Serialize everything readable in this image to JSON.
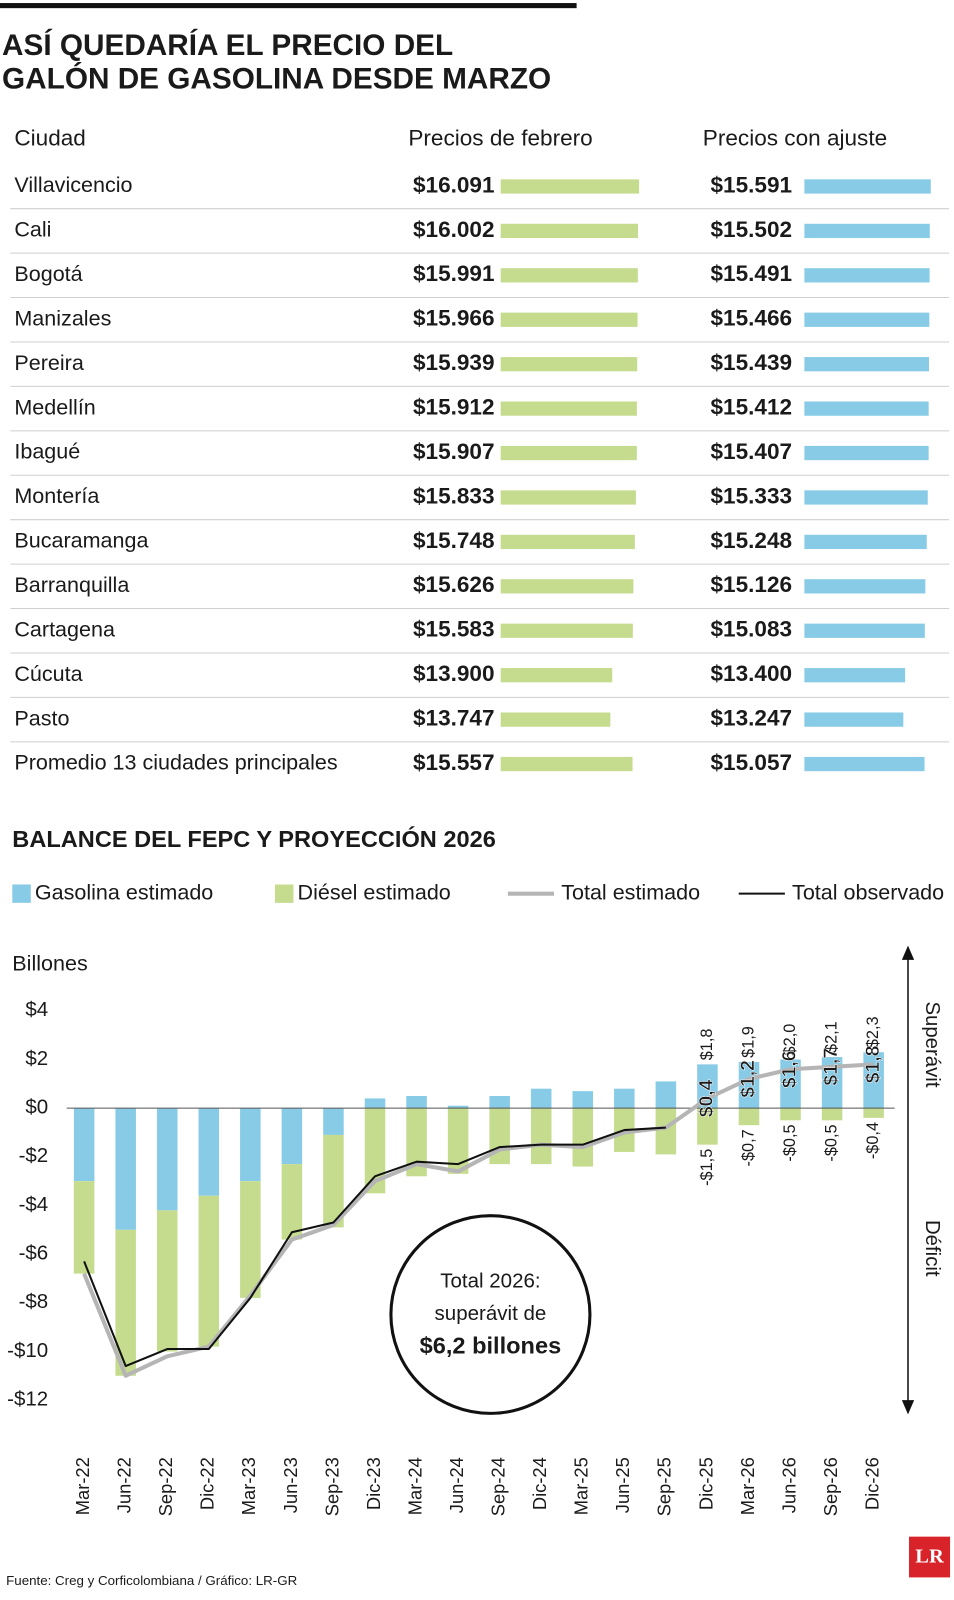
{
  "chart_data": [
    {
      "type": "bar",
      "orientation": "horizontal",
      "title": [
        "ASÍ QUEDARÍA EL PRECIO DEL",
        "GALÓN DE GASOLINA DESDE MARZO"
      ],
      "category_label": "Ciudad",
      "categories": [
        "Villavicencio",
        "Cali",
        "Bogotá",
        "Manizales",
        "Pereira",
        "Medellín",
        "Ibagué",
        "Montería",
        "Bucaramanga",
        "Barranquilla",
        "Cartagena",
        "Cúcuta",
        "Pasto",
        "Promedio 13 ciudades principales"
      ],
      "series": [
        {
          "name": "Precios de febrero",
          "color": "#c5dc8e",
          "values": [
            16091,
            16002,
            15991,
            15966,
            15939,
            15912,
            15907,
            15833,
            15748,
            15626,
            15583,
            13900,
            13747,
            15557
          ],
          "value_labels": [
            "$16.091",
            "$16.002",
            "$15.991",
            "$15.966",
            "$15.939",
            "$15.912",
            "$15.907",
            "$15.833",
            "$15.748",
            "$15.626",
            "$15.583",
            "$13.900",
            "$13.747",
            "$15.557"
          ]
        },
        {
          "name": "Precios con ajuste",
          "color": "#87cbe6",
          "values": [
            15591,
            15502,
            15491,
            15466,
            15439,
            15412,
            15407,
            15333,
            15248,
            15126,
            15083,
            13400,
            13247,
            15057
          ],
          "value_labels": [
            "$15.591",
            "$15.502",
            "$15.491",
            "$15.466",
            "$15.439",
            "$15.412",
            "$15.407",
            "$15.333",
            "$15.248",
            "$15.126",
            "$15.083",
            "$13.400",
            "$13.247",
            "$15.057"
          ]
        }
      ],
      "xlim": [
        4800,
        16100
      ]
    },
    {
      "type": "bar",
      "stacked": true,
      "title": "BALANCE DEL FEPC Y PROYECCIÓN 2026",
      "ylabel": "Billones",
      "categories": [
        "Mar-22",
        "Jun-22",
        "Sep-22",
        "Dic-22",
        "Mar-23",
        "Jun-23",
        "Sep-23",
        "Dic-23",
        "Mar-24",
        "Jun-24",
        "Sep-24",
        "Dic-24",
        "Mar-25",
        "Jun-25",
        "Sep-25",
        "Dic-25",
        "Mar-26",
        "Jun-26",
        "Sep-26",
        "Dic-26"
      ],
      "series": [
        {
          "name": "Gasolina estimado",
          "type": "bar",
          "color": "#87cbe6",
          "values": [
            -3.0,
            -5.0,
            -4.2,
            -3.6,
            -3.0,
            -2.3,
            -1.1,
            0.4,
            0.5,
            0.1,
            0.5,
            0.8,
            0.7,
            0.8,
            1.1,
            1.8,
            1.9,
            2.0,
            2.1,
            2.3
          ],
          "value_labels": [
            null,
            null,
            null,
            null,
            null,
            null,
            null,
            null,
            null,
            null,
            null,
            null,
            null,
            null,
            null,
            "$1,8",
            "$1,9",
            "$2,0",
            "$2,1",
            "$2,3"
          ]
        },
        {
          "name": "Diésel estimado",
          "type": "bar",
          "color": "#c5dc8e",
          "values": [
            -3.8,
            -6.0,
            -5.8,
            -6.2,
            -4.8,
            -3.1,
            -3.8,
            -3.5,
            -2.8,
            -2.7,
            -2.3,
            -2.3,
            -2.4,
            -1.8,
            -1.9,
            -1.5,
            -0.7,
            -0.5,
            -0.5,
            -0.4
          ],
          "value_labels": [
            null,
            null,
            null,
            null,
            null,
            null,
            null,
            null,
            null,
            null,
            null,
            null,
            null,
            null,
            null,
            "-$1,5",
            "-$0,7",
            "-$0,5",
            "-$0,5",
            "-$0,4"
          ]
        },
        {
          "name": "Total estimado",
          "type": "line",
          "color": "#b5b5b5",
          "values": [
            -6.8,
            -11.0,
            -10.2,
            -9.8,
            -7.7,
            -5.4,
            -4.8,
            -3.0,
            -2.3,
            -2.6,
            -1.7,
            -1.5,
            -1.6,
            -1.0,
            -0.8,
            0.4,
            1.2,
            1.6,
            1.7,
            1.8
          ],
          "value_labels": [
            null,
            null,
            null,
            null,
            null,
            null,
            null,
            null,
            null,
            null,
            null,
            null,
            null,
            null,
            null,
            "$0,4",
            "$1,2",
            "$1,6",
            "$1,7",
            "$1,8"
          ]
        },
        {
          "name": "Total observado",
          "type": "line",
          "color": "#111111",
          "values": [
            -6.3,
            -10.6,
            -9.9,
            -9.9,
            -7.8,
            -5.1,
            -4.7,
            -2.8,
            -2.2,
            -2.3,
            -1.6,
            -1.5,
            -1.5,
            -0.9,
            -0.8,
            null,
            null,
            null,
            null,
            null
          ]
        }
      ],
      "ylim": [
        -12,
        4
      ],
      "yticks": [
        {
          "value": 4,
          "label": "$4"
        },
        {
          "value": 2,
          "label": "$2"
        },
        {
          "value": 0,
          "label": "$0"
        },
        {
          "value": -2,
          "label": "-$2"
        },
        {
          "value": -4,
          "label": "-$4"
        },
        {
          "value": -6,
          "label": "-$6"
        },
        {
          "value": -8,
          "label": "-$8"
        },
        {
          "value": -10,
          "label": "-$10"
        },
        {
          "value": -12,
          "label": "-$12"
        }
      ],
      "annotations": {
        "superavit": "Superávit",
        "deficit": "Déficit",
        "circle": [
          "Total 2026:",
          "superávit de",
          "$6,2 billones"
        ]
      }
    }
  ],
  "source": "Fuente: Creg y Corficolombiana / Gráfico: LR-GR",
  "logo": "LR"
}
